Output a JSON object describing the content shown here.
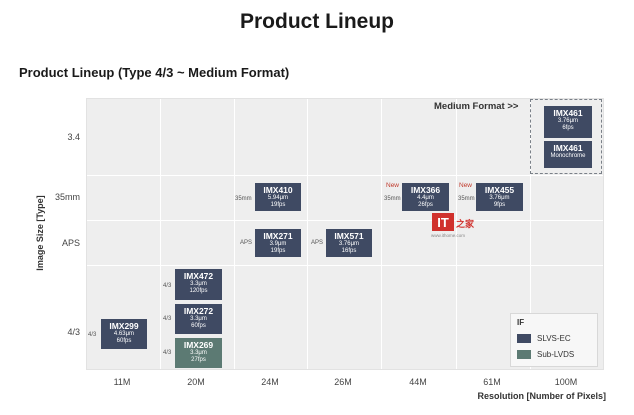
{
  "title": "Product Lineup",
  "subtitle": "Product Lineup (Type 4/3 ~ Medium Format)",
  "axes": {
    "y_title": "Image Size [Type]",
    "x_title": "Resolution [Number of Pixels]",
    "y_categories": [
      "3.4",
      "35mm",
      "APS",
      "4/3"
    ],
    "x_categories": [
      "11M",
      "20M",
      "24M",
      "26M",
      "44M",
      "61M",
      "100M"
    ]
  },
  "medium_format_label": "Medium Format >>",
  "new_tag": "New",
  "sensors": [
    {
      "id": "imx461a",
      "name": "IMX461",
      "spec1": "3.76μm",
      "spec2": "6fps",
      "x": "100M",
      "y": "3.4",
      "interface": "SLVS-EC"
    },
    {
      "id": "imx461b",
      "name": "IMX461",
      "spec1": "3.76μm",
      "spec2": "Monochrome",
      "x": "100M",
      "y": "3.4",
      "interface": "SLVS-EC"
    },
    {
      "id": "imx410",
      "name": "IMX410",
      "spec1": "5.94μm",
      "spec2": "19fps",
      "x": "24M",
      "y": "35mm",
      "format": "35mm",
      "interface": "SLVS-EC"
    },
    {
      "id": "imx366",
      "name": "IMX366",
      "spec1": "4.4μm",
      "spec2": "26fps",
      "x": "44M",
      "y": "35mm",
      "format": "35mm",
      "new": true,
      "interface": "SLVS-EC"
    },
    {
      "id": "imx455",
      "name": "IMX455",
      "spec1": "3.76μm",
      "spec2": "9fps",
      "x": "61M",
      "y": "35mm",
      "format": "35mm",
      "new": true,
      "interface": "SLVS-EC"
    },
    {
      "id": "imx271",
      "name": "IMX271",
      "spec1": "3.9μm",
      "spec2": "19fps",
      "x": "24M",
      "y": "APS",
      "format": "APS",
      "interface": "SLVS-EC"
    },
    {
      "id": "imx571",
      "name": "IMX571",
      "spec1": "3.76μm",
      "spec2": "16fps",
      "x": "26M",
      "y": "APS",
      "format": "APS",
      "interface": "SLVS-EC"
    },
    {
      "id": "imx472",
      "name": "IMX472",
      "spec1": "3.3μm",
      "spec2": "120fps",
      "x": "20M",
      "y": "4/3",
      "format": "4/3",
      "interface": "SLVS-EC"
    },
    {
      "id": "imx272",
      "name": "IMX272",
      "spec1": "3.3μm",
      "spec2": "60fps",
      "x": "20M",
      "y": "4/3",
      "format": "4/3",
      "interface": "SLVS-EC"
    },
    {
      "id": "imx269",
      "name": "IMX269",
      "spec1": "3.3μm",
      "spec2": "27fps",
      "x": "20M",
      "y": "4/3",
      "format": "4/3",
      "interface": "Sub-LVDS"
    },
    {
      "id": "imx299",
      "name": "IMX299",
      "spec1": "4.63μm",
      "spec2": "60fps",
      "x": "11M",
      "y": "4/3",
      "format": "4/3",
      "interface": "SLVS-EC"
    }
  ],
  "legend": {
    "title": "IF",
    "items": [
      {
        "label": "SLVS-EC",
        "color": "#3f4a63"
      },
      {
        "label": "Sub-LVDS",
        "color": "#5c7a73"
      }
    ]
  },
  "watermark": {
    "text": "www.ithome.com",
    "logo_it": "IT",
    "logo_glyph": "之家"
  }
}
